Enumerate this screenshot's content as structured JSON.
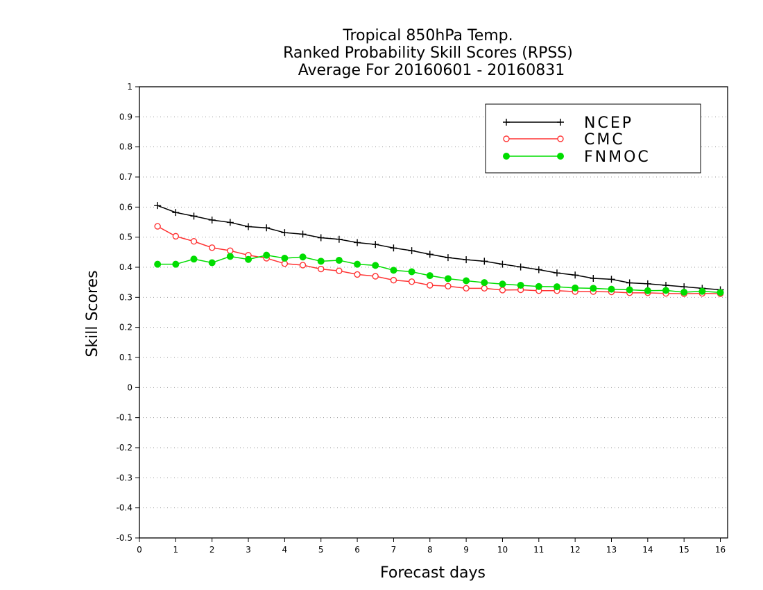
{
  "title_lines": [
    "Tropical 850hPa Temp.",
    "Ranked Probability Skill Scores (RPSS)",
    "Average For 20160601 - 20160831"
  ],
  "chart_data": {
    "type": "line",
    "title": "Tropical 850hPa Temp. Ranked Probability Skill Scores (RPSS) Average For 20160601 - 20160831",
    "xlabel": "Forecast days",
    "ylabel": "Skill Scores",
    "xlim": [
      0,
      16.2
    ],
    "ylim": [
      -0.5,
      1
    ],
    "xticks": [
      0,
      1,
      2,
      3,
      4,
      5,
      6,
      7,
      8,
      9,
      10,
      11,
      12,
      13,
      14,
      15,
      16
    ],
    "yticks": [
      -0.5,
      -0.4,
      -0.3,
      -0.2,
      -0.1,
      0,
      0.1,
      0.2,
      0.3,
      0.4,
      0.5,
      0.6,
      0.7,
      0.8,
      0.9,
      1
    ],
    "ytick_labels": [
      "-0.5",
      "-0.4",
      "-0.3",
      "-0.2",
      "-0.1",
      "0",
      "0.1",
      "0.2",
      "0.3",
      "0.4",
      "0.5",
      "0.6",
      "0.7",
      "0.8",
      "0.9",
      "1"
    ],
    "grid": "horizontal dotted",
    "legend_position": "top-right",
    "x": [
      0.5,
      1,
      1.5,
      2,
      2.5,
      3,
      3.5,
      4,
      4.5,
      5,
      5.5,
      6,
      6.5,
      7,
      7.5,
      8,
      8.5,
      9,
      9.5,
      10,
      10.5,
      11,
      11.5,
      12,
      12.5,
      13,
      13.5,
      14,
      14.5,
      15,
      15.5,
      16
    ],
    "series": [
      {
        "name": "NCEP",
        "color": "#000000",
        "marker": "plus",
        "values": [
          0.605,
          0.582,
          0.57,
          0.557,
          0.549,
          0.535,
          0.531,
          0.515,
          0.51,
          0.498,
          0.493,
          0.482,
          0.476,
          0.464,
          0.455,
          0.443,
          0.432,
          0.425,
          0.42,
          0.41,
          0.401,
          0.392,
          0.381,
          0.374,
          0.363,
          0.36,
          0.348,
          0.345,
          0.34,
          0.335,
          0.33,
          0.325
        ]
      },
      {
        "name": "CMC",
        "color": "#ff3333",
        "marker": "open-circle",
        "values": [
          0.536,
          0.503,
          0.486,
          0.465,
          0.455,
          0.44,
          0.43,
          0.412,
          0.407,
          0.394,
          0.388,
          0.376,
          0.37,
          0.357,
          0.352,
          0.34,
          0.337,
          0.33,
          0.33,
          0.324,
          0.325,
          0.322,
          0.322,
          0.319,
          0.319,
          0.318,
          0.315,
          0.315,
          0.313,
          0.312,
          0.313,
          0.312
        ]
      },
      {
        "name": "FNMOC",
        "color": "#00dd00",
        "marker": "filled-circle",
        "values": [
          0.41,
          0.41,
          0.427,
          0.415,
          0.436,
          0.426,
          0.44,
          0.43,
          0.434,
          0.42,
          0.423,
          0.41,
          0.406,
          0.39,
          0.385,
          0.372,
          0.362,
          0.355,
          0.349,
          0.344,
          0.34,
          0.336,
          0.335,
          0.331,
          0.33,
          0.327,
          0.325,
          0.322,
          0.323,
          0.317,
          0.32,
          0.316
        ]
      }
    ]
  }
}
